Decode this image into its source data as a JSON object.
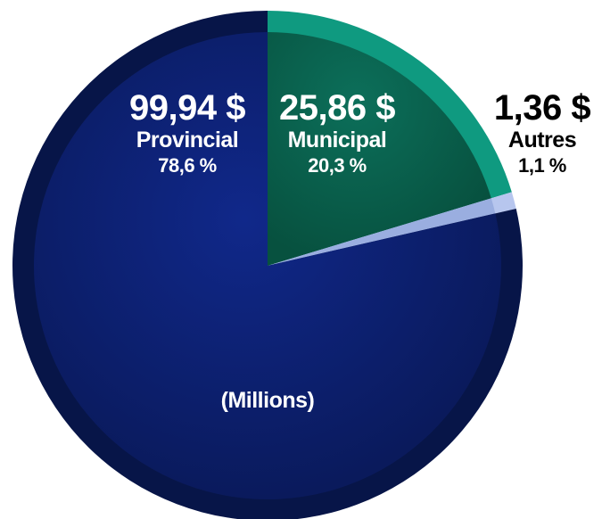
{
  "chart_data": {
    "type": "pie",
    "unit_note": "(Millions)",
    "slices": [
      {
        "name": "Provincial",
        "value": 99.94,
        "value_label": "99,94 $",
        "percent": 78.6,
        "percent_label": "78,6 %",
        "color": "#0a1f6b"
      },
      {
        "name": "Municipal",
        "value": 25.86,
        "value_label": "25,86 $",
        "percent": 20.3,
        "percent_label": "20,3 %",
        "color": "#0b6a57"
      },
      {
        "name": "Autres",
        "value": 1.36,
        "value_label": "1,36 $",
        "percent": 1.1,
        "percent_label": "1,1 %",
        "color": "#9aaee0"
      }
    ]
  },
  "colors": {
    "provincial_dark": "#071548",
    "municipal_rim": "#0f9a80",
    "autres_rim": "#b7c6ee"
  }
}
